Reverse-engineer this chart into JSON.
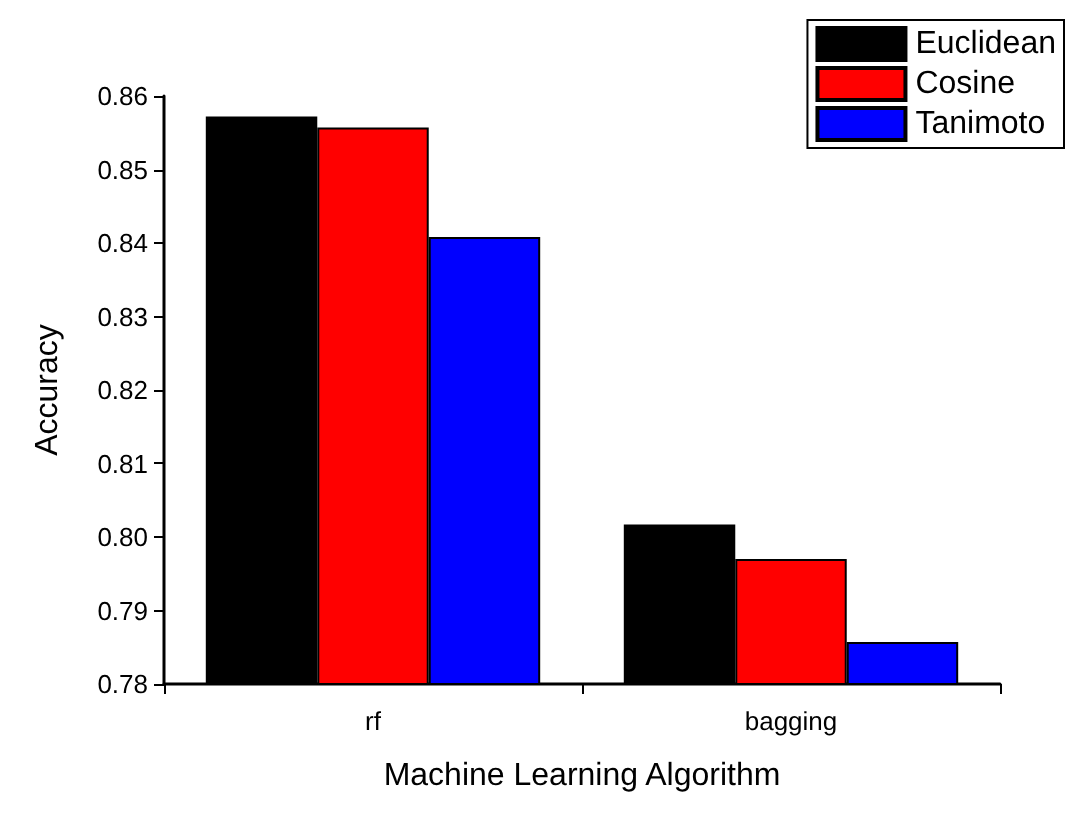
{
  "chart_data": {
    "type": "bar",
    "xlabel": "Machine Learning Algorithm",
    "ylabel": "Accuracy",
    "categories": [
      "rf",
      "bagging"
    ],
    "series": [
      {
        "name": "Euclidean",
        "color": "#000000",
        "values": [
          0.8572,
          0.8017
        ]
      },
      {
        "name": "Cosine",
        "color": "#ff0000",
        "values": [
          0.8557,
          0.797
        ]
      },
      {
        "name": "Tanimoto",
        "color": "#0000ff",
        "values": [
          0.8408,
          0.7857
        ]
      }
    ],
    "ylim": [
      0.78,
      0.86
    ],
    "yticks": [
      0.78,
      0.79,
      {
        "value": 0.8,
        "label": "0.80"
      },
      0.81,
      0.82,
      0.83,
      0.84,
      0.85,
      0.86
    ],
    "grid": false,
    "legend": "top right"
  }
}
